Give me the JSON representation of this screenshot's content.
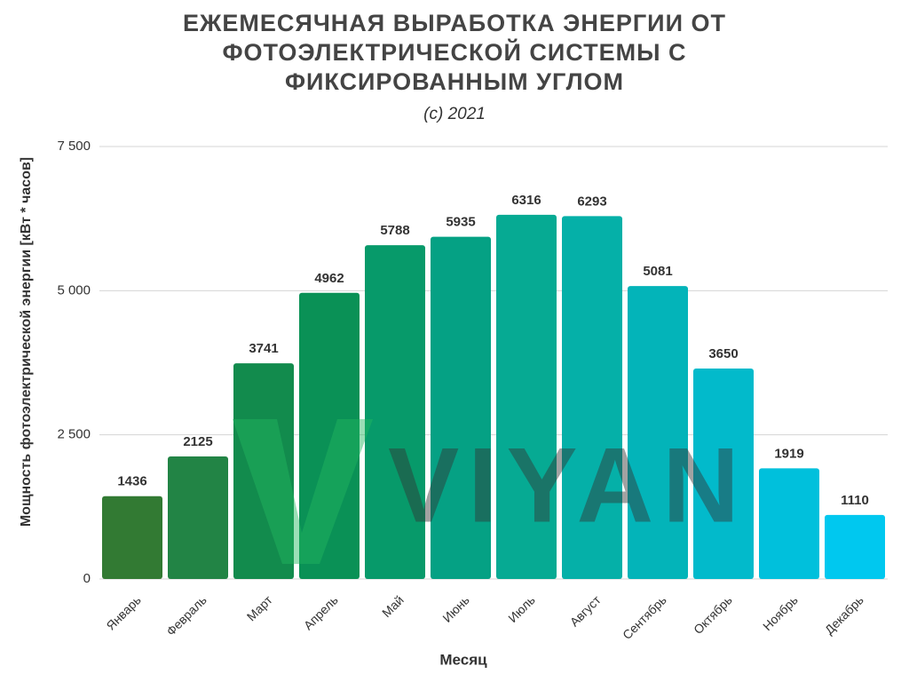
{
  "chart_data": {
    "type": "bar",
    "title": "ЕЖЕМЕСЯЧНАЯ ВЫРАБОТКА ЭНЕРГИИ ОТ ФОТОЭЛЕКТРИЧЕСКОЙ СИСТЕМЫ С ФИКСИРОВАННЫМ УГЛОМ",
    "subtitle": "(c) 2021",
    "x_label": "Месяц",
    "y_label": "Мощность фотоэлектрической энергии [кВт * часов]",
    "watermark": "VIYAN",
    "categories": [
      "Январь",
      "Февраль",
      "Март",
      "Апрель",
      "Май",
      "Июнь",
      "Июль",
      "Август",
      "Сентябрь",
      "Октябрь",
      "Ноябрь",
      "Декабрь"
    ],
    "values": [
      1436,
      2125,
      3741,
      4962,
      5788,
      5935,
      6316,
      6293,
      5081,
      3650,
      1919,
      1110
    ],
    "colors": [
      "#327a33",
      "#228445",
      "#128b4d",
      "#0a9156",
      "#079a6a",
      "#05a184",
      "#06aa93",
      "#05b0a8",
      "#03b4b9",
      "#02bacb",
      "#00c0dc",
      "#00c8ef"
    ],
    "ylim": [
      0,
      7500
    ],
    "yticks": [
      0,
      {
        "value": 2500,
        "label": "2 500"
      },
      {
        "value": 5000,
        "label": "5 000"
      },
      {
        "value": 7500,
        "label": "7 500"
      }
    ],
    "grid": true
  }
}
